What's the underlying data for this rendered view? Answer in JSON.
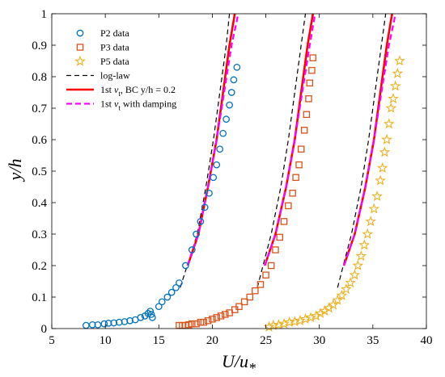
{
  "chart_data": {
    "type": "scatter",
    "xlabel": "U/u",
    "xlabel_sub": "*",
    "ylabel": "y/h",
    "xlim": [
      5,
      40
    ],
    "ylim": [
      0,
      1
    ],
    "xticks": [
      "5",
      "10",
      "15",
      "20",
      "25",
      "30",
      "35",
      "40"
    ],
    "yticks": [
      "0",
      "0.1",
      "0.2",
      "0.3",
      "0.4",
      "0.5",
      "0.6",
      "0.7",
      "0.8",
      "0.9",
      "1"
    ],
    "grid": false,
    "legend_position": "top-left",
    "series": [
      {
        "name": "P2 data",
        "kind": "markers",
        "marker": "circle",
        "color": "#0072BD",
        "x": [
          8.2,
          8.8,
          9.3,
          9.9,
          10.3,
          10.8,
          11.3,
          11.8,
          12.3,
          12.8,
          13.3,
          13.7,
          14.0,
          14.2,
          14.3,
          14.4,
          15.0,
          15.3,
          15.8,
          16.2,
          16.6,
          16.9,
          17.5,
          18.1,
          18.5,
          18.9,
          19.3,
          19.7,
          20.1,
          20.4,
          20.7,
          21.0,
          21.3,
          21.6,
          21.8,
          22.0,
          22.3
        ],
        "y": [
          0.01,
          0.012,
          0.012,
          0.015,
          0.017,
          0.018,
          0.02,
          0.022,
          0.025,
          0.028,
          0.035,
          0.04,
          0.048,
          0.055,
          0.045,
          0.035,
          0.07,
          0.085,
          0.1,
          0.115,
          0.13,
          0.145,
          0.2,
          0.25,
          0.3,
          0.34,
          0.385,
          0.43,
          0.48,
          0.52,
          0.57,
          0.62,
          0.665,
          0.71,
          0.75,
          0.79,
          0.83
        ]
      },
      {
        "name": "P3 data",
        "kind": "markers",
        "marker": "square",
        "color": "#D95319",
        "x": [
          16.9,
          17.2,
          17.5,
          17.8,
          18.1,
          18.5,
          18.9,
          19.2,
          19.6,
          20.0,
          20.4,
          20.8,
          21.2,
          21.6,
          22.1,
          22.5,
          23.0,
          23.5,
          24.0,
          24.5,
          25.0,
          25.5,
          25.9,
          26.3,
          26.7,
          27.1,
          27.5,
          27.8,
          28.1,
          28.3,
          28.6,
          28.8,
          29.0,
          29.1,
          29.3,
          29.4
        ],
        "y": [
          0.01,
          0.01,
          0.01,
          0.012,
          0.015,
          0.015,
          0.02,
          0.02,
          0.025,
          0.03,
          0.035,
          0.04,
          0.045,
          0.05,
          0.06,
          0.07,
          0.085,
          0.1,
          0.12,
          0.14,
          0.17,
          0.2,
          0.25,
          0.29,
          0.34,
          0.39,
          0.43,
          0.48,
          0.52,
          0.57,
          0.63,
          0.68,
          0.73,
          0.78,
          0.82,
          0.86
        ]
      },
      {
        "name": "P5 data",
        "kind": "markers",
        "marker": "star",
        "color": "#EDB120",
        "x": [
          25.3,
          25.7,
          26.2,
          26.7,
          27.2,
          27.7,
          28.2,
          28.7,
          29.2,
          29.7,
          30.1,
          30.5,
          30.9,
          31.3,
          31.7,
          32.1,
          32.5,
          32.9,
          33.3,
          33.6,
          33.9,
          34.2,
          34.5,
          34.8,
          35.1,
          35.4,
          35.7,
          35.9,
          36.1,
          36.3,
          36.5,
          36.7,
          36.9,
          37.1,
          37.3,
          37.5
        ],
        "y": [
          0.005,
          0.01,
          0.012,
          0.015,
          0.02,
          0.022,
          0.025,
          0.03,
          0.035,
          0.04,
          0.048,
          0.056,
          0.065,
          0.075,
          0.09,
          0.105,
          0.125,
          0.145,
          0.17,
          0.2,
          0.23,
          0.265,
          0.3,
          0.34,
          0.38,
          0.42,
          0.47,
          0.51,
          0.56,
          0.6,
          0.65,
          0.7,
          0.73,
          0.77,
          0.81,
          0.85
        ]
      },
      {
        "name": "log-law",
        "kind": "line",
        "style": "dashed",
        "color": "#000000",
        "curves": [
          {
            "x": [
              17.0,
              18.6,
              19.4,
              20.1,
              20.7,
              21.3,
              21.6
            ],
            "y": [
              0.13,
              0.3,
              0.45,
              0.6,
              0.75,
              0.9,
              1.0
            ]
          },
          {
            "x": [
              24.2,
              25.5,
              26.4,
              27.1,
              27.7,
              28.3,
              28.7
            ],
            "y": [
              0.13,
              0.3,
              0.45,
              0.6,
              0.75,
              0.9,
              1.0
            ]
          },
          {
            "x": [
              31.7,
              33.0,
              33.9,
              34.6,
              35.2,
              35.8,
              36.2
            ],
            "y": [
              0.13,
              0.3,
              0.45,
              0.6,
              0.75,
              0.9,
              1.0
            ]
          }
        ]
      },
      {
        "name": "1st νt, BC y/h = 0.2",
        "kind": "line",
        "style": "solid",
        "color": "#FF0000",
        "curves": [
          {
            "x": [
              17.7,
              18.7,
              19.6,
              20.4,
              21.0,
              21.6,
              22.0,
              22.1
            ],
            "y": [
              0.2,
              0.3,
              0.45,
              0.6,
              0.75,
              0.9,
              0.98,
              1.0
            ]
          },
          {
            "x": [
              24.9,
              25.9,
              26.9,
              27.7,
              28.3,
              28.9,
              29.3,
              29.4
            ],
            "y": [
              0.2,
              0.3,
              0.45,
              0.6,
              0.75,
              0.9,
              0.98,
              1.0
            ]
          },
          {
            "x": [
              32.3,
              33.3,
              34.3,
              35.1,
              35.7,
              36.3,
              36.7,
              36.8
            ],
            "y": [
              0.2,
              0.3,
              0.45,
              0.6,
              0.75,
              0.9,
              0.98,
              1.0
            ]
          }
        ]
      },
      {
        "name": "1st νt with damping",
        "kind": "line",
        "style": "dashed",
        "color": "#FF00FF",
        "curves": [
          {
            "x": [
              17.7,
              18.7,
              19.6,
              20.4,
              21.1,
              21.8,
              22.3,
              22.4
            ],
            "y": [
              0.2,
              0.3,
              0.45,
              0.6,
              0.75,
              0.9,
              0.98,
              1.0
            ]
          },
          {
            "x": [
              24.9,
              25.9,
              26.9,
              27.7,
              28.4,
              29.1,
              29.5,
              29.6
            ],
            "y": [
              0.2,
              0.3,
              0.45,
              0.6,
              0.75,
              0.9,
              0.98,
              1.0
            ]
          },
          {
            "x": [
              32.3,
              33.3,
              34.3,
              35.1,
              35.8,
              36.5,
              37.0,
              37.1
            ],
            "y": [
              0.2,
              0.3,
              0.45,
              0.6,
              0.75,
              0.9,
              0.98,
              1.0
            ]
          }
        ]
      }
    ],
    "legend": [
      {
        "label": "P2 data",
        "sym": "circle",
        "color": "#0072BD"
      },
      {
        "label": "P3 data",
        "sym": "square",
        "color": "#D95319"
      },
      {
        "label": "P5 data",
        "sym": "star",
        "color": "#EDB120"
      },
      {
        "label": "log-law",
        "sym": "dash",
        "color": "#000000"
      },
      {
        "label": "1st",
        "nu": "ν",
        "sub": "t",
        "rest": ", BC y/h = 0.2",
        "sym": "solid",
        "color": "#FF0000"
      },
      {
        "label": "1st",
        "nu": "ν",
        "sub": "t",
        "rest": " with damping",
        "sym": "dashmag",
        "color": "#FF00FF"
      }
    ]
  }
}
